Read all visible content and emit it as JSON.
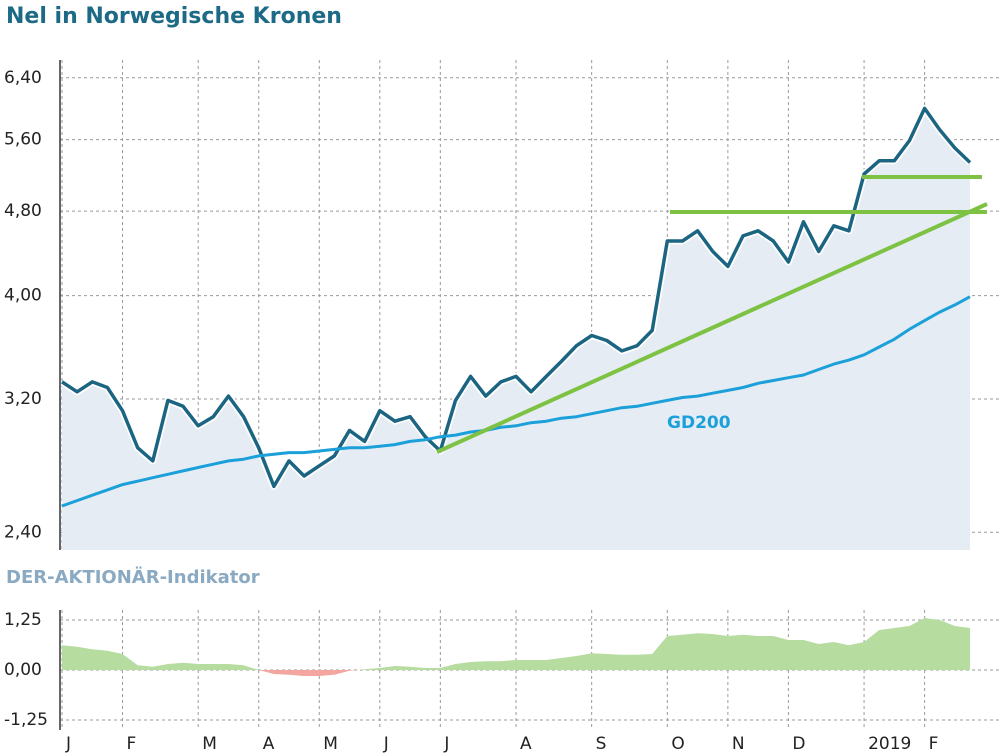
{
  "chart_data": [
    {
      "type": "line",
      "title": "Nel in Norwegische Kronen",
      "log": true,
      "grid": true,
      "categories": [
        "J",
        null,
        null,
        null,
        "F",
        null,
        null,
        null,
        null,
        "M",
        null,
        null,
        null,
        "A",
        null,
        null,
        null,
        "M",
        null,
        null,
        null,
        "J",
        null,
        null,
        null,
        "J",
        null,
        null,
        null,
        null,
        "A",
        null,
        null,
        null,
        null,
        "S",
        null,
        null,
        null,
        null,
        "O",
        null,
        null,
        null,
        "N",
        null,
        null,
        null,
        "D",
        null,
        null,
        null,
        null,
        "2019",
        null,
        null,
        null,
        "F",
        null,
        null,
        null
      ],
      "series": [
        {
          "name": "Nel",
          "color": "#1b6582",
          "values": [
            3.32,
            3.25,
            3.32,
            3.28,
            3.12,
            2.88,
            2.8,
            3.19,
            3.15,
            3.02,
            3.08,
            3.22,
            3.08,
            2.88,
            2.65,
            2.8,
            2.71,
            2.77,
            2.83,
            2.99,
            2.92,
            3.12,
            3.05,
            3.08,
            2.95,
            2.86,
            3.19,
            3.36,
            3.22,
            3.32,
            3.36,
            3.25,
            3.36,
            3.47,
            3.59,
            3.67,
            3.63,
            3.55,
            3.59,
            3.71,
            4.5,
            4.5,
            4.6,
            4.4,
            4.26,
            4.55,
            4.6,
            4.5,
            4.3,
            4.69,
            4.4,
            4.65,
            4.6,
            5.2,
            5.35,
            5.35,
            5.59,
            5.99,
            5.72,
            5.5,
            5.33
          ]
        },
        {
          "name": "GD200",
          "color": "#1ca0da",
          "values": [
            2.54,
            2.57,
            2.6,
            2.63,
            2.66,
            2.68,
            2.7,
            2.72,
            2.74,
            2.76,
            2.78,
            2.8,
            2.81,
            2.83,
            2.84,
            2.85,
            2.85,
            2.86,
            2.87,
            2.88,
            2.88,
            2.89,
            2.9,
            2.92,
            2.93,
            2.95,
            2.96,
            2.98,
            2.99,
            3.01,
            3.02,
            3.04,
            3.05,
            3.07,
            3.08,
            3.1,
            3.12,
            3.14,
            3.15,
            3.17,
            3.19,
            3.21,
            3.22,
            3.24,
            3.26,
            3.28,
            3.31,
            3.33,
            3.35,
            3.37,
            3.41,
            3.45,
            3.48,
            3.52,
            3.58,
            3.64,
            3.72,
            3.79,
            3.86,
            3.92,
            3.99
          ]
        }
      ],
      "ylim": [
        2.31,
        6.65
      ],
      "yticks": [
        {
          "value": 2.4,
          "label": "2,40"
        },
        {
          "value": 3.2,
          "label": "3,20"
        },
        {
          "value": 4.0,
          "label": "4,00"
        },
        {
          "value": 4.8,
          "label": "4,80"
        },
        {
          "value": 5.6,
          "label": "5,60"
        },
        {
          "value": 6.4,
          "label": "6,40"
        }
      ]
    },
    {
      "type": "area",
      "title": "DER-AKTIONÄR-Indikator",
      "grid": true,
      "colors": {
        "positive": "#b6dc9f",
        "negative": "#f3a59f"
      },
      "values": [
        0.62,
        0.58,
        0.52,
        0.48,
        0.4,
        0.12,
        0.08,
        0.15,
        0.18,
        0.15,
        0.15,
        0.15,
        0.12,
        0.0,
        -0.1,
        -0.12,
        -0.15,
        -0.15,
        -0.12,
        -0.02,
        0.02,
        0.05,
        0.1,
        0.08,
        0.05,
        0.05,
        0.15,
        0.2,
        0.22,
        0.22,
        0.25,
        0.25,
        0.25,
        0.3,
        0.35,
        0.42,
        0.4,
        0.38,
        0.38,
        0.4,
        0.85,
        0.88,
        0.92,
        0.9,
        0.85,
        0.88,
        0.85,
        0.85,
        0.75,
        0.75,
        0.65,
        0.7,
        0.62,
        0.7,
        1.0,
        1.05,
        1.1,
        1.3,
        1.25,
        1.1,
        1.05
      ],
      "ylim": [
        -1.5,
        1.5
      ],
      "yticks": [
        {
          "value": -1.25,
          "label": "-1,25"
        },
        {
          "value": 0,
          "label": "0,00"
        },
        {
          "value": 1.25,
          "label": "1,25"
        }
      ]
    }
  ]
}
